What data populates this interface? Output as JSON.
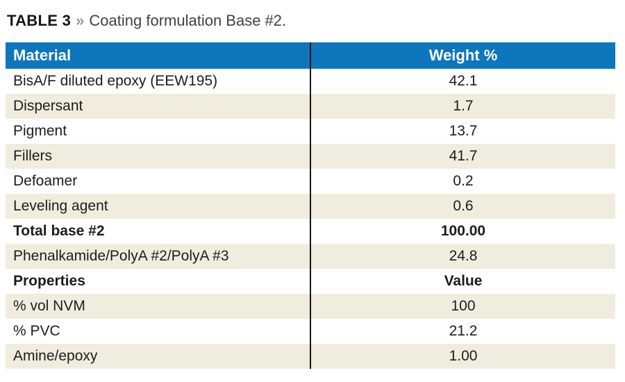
{
  "title": {
    "label": "TABLE 3",
    "separator": "»",
    "caption": "Coating formulation Base #2."
  },
  "table": {
    "columns": [
      "Material",
      "Weight %"
    ],
    "rows": [
      {
        "material": "BisA/F diluted epoxy (EEW195)",
        "value": "42.1",
        "bold": false
      },
      {
        "material": "Dispersant",
        "value": "1.7",
        "bold": false
      },
      {
        "material": "Pigment",
        "value": "13.7",
        "bold": false
      },
      {
        "material": "Fillers",
        "value": "41.7",
        "bold": false
      },
      {
        "material": "Defoamer",
        "value": "0.2",
        "bold": false
      },
      {
        "material": "Leveling agent",
        "value": "0.6",
        "bold": false
      },
      {
        "material": "Total base #2",
        "value": "100.00",
        "bold": true
      },
      {
        "material": "Phenalkamide/PolyA #2/PolyA #3",
        "value": "24.8",
        "bold": false
      },
      {
        "material": "Properties",
        "value": "Value",
        "bold": true
      },
      {
        "material": "% vol NVM",
        "value": "100",
        "bold": false
      },
      {
        "material": "% PVC",
        "value": "21.2",
        "bold": false
      },
      {
        "material": "Amine/epoxy",
        "value": "1.00",
        "bold": false
      }
    ]
  },
  "colors": {
    "header_bg": "#0e76bc",
    "header_text": "#ffffff",
    "row_white": "#ffffff",
    "row_cream": "#f0edde",
    "column_divider": "#151515",
    "body_text": "#1e1b1c",
    "caption_label": "#161616",
    "caption_separator": "#9b9b9b",
    "caption_text": "#414141"
  },
  "chart_data": {
    "type": "table",
    "title": "TABLE 3 » Coating formulation Base #2.",
    "columns": [
      "Material",
      "Weight %"
    ],
    "rows": [
      [
        "BisA/F diluted epoxy (EEW195)",
        "42.1"
      ],
      [
        "Dispersant",
        "1.7"
      ],
      [
        "Pigment",
        "13.7"
      ],
      [
        "Fillers",
        "41.7"
      ],
      [
        "Defoamer",
        "0.2"
      ],
      [
        "Leveling agent",
        "0.6"
      ],
      [
        "Total base #2",
        "100.00"
      ],
      [
        "Phenalkamide/PolyA #2/PolyA #3",
        "24.8"
      ],
      [
        "Properties",
        "Value"
      ],
      [
        "% vol NVM",
        "100"
      ],
      [
        "% PVC",
        "21.2"
      ],
      [
        "Amine/epoxy",
        "1.00"
      ]
    ]
  }
}
